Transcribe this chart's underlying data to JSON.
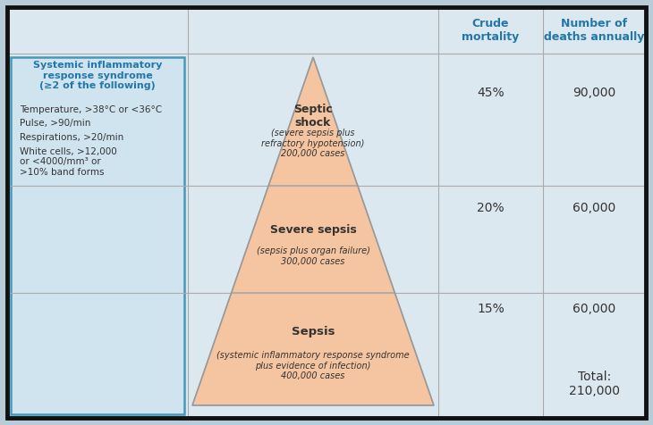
{
  "bg_color": "#b8ccd8",
  "outer_border_color": "#111111",
  "grid_line_color": "#aaaaaa",
  "triangle_color": "#f5c4a0",
  "triangle_border_color": "#aaaaaa",
  "table_bg": "#dce8f0",
  "sirs_box_bg": "#d0e4f0",
  "sirs_box_border": "#4499bb",
  "col_header_color": "#2277aa",
  "text_color_dark": "#333333",
  "text_color_blue": "#2277aa",
  "col1_header": "Crude\nmortality",
  "col2_header": "Number of\ndeaths annually",
  "rows": [
    {
      "label_bold": "Septic\nshock",
      "label_sub": "(severe sepsis plus\nrefractory hypotension)\n200,000 cases",
      "crude": "45%",
      "deaths": "90,000"
    },
    {
      "label_bold": "Severe sepsis",
      "label_sub": "(sepsis plus organ failure)\n300,000 cases",
      "crude": "20%",
      "deaths": "60,000"
    },
    {
      "label_bold": "Sepsis",
      "label_sub": "(systemic inflammatory response syndrome\nplus evidence of infection)\n400,000 cases",
      "crude": "15%",
      "deaths": "60,000"
    }
  ],
  "total_label": "Total:\n210,000",
  "sirs_title": "Systemic inflammatory\nresponse syndrome\n(≥2 of the following)",
  "sirs_bullets": [
    "Temperature, >38°C or <36°C",
    "Pulse, >90/min",
    "Respirations, >20/min",
    "White cells, >12,000\nor <4000/mm³ or\n>10% band forms"
  ]
}
